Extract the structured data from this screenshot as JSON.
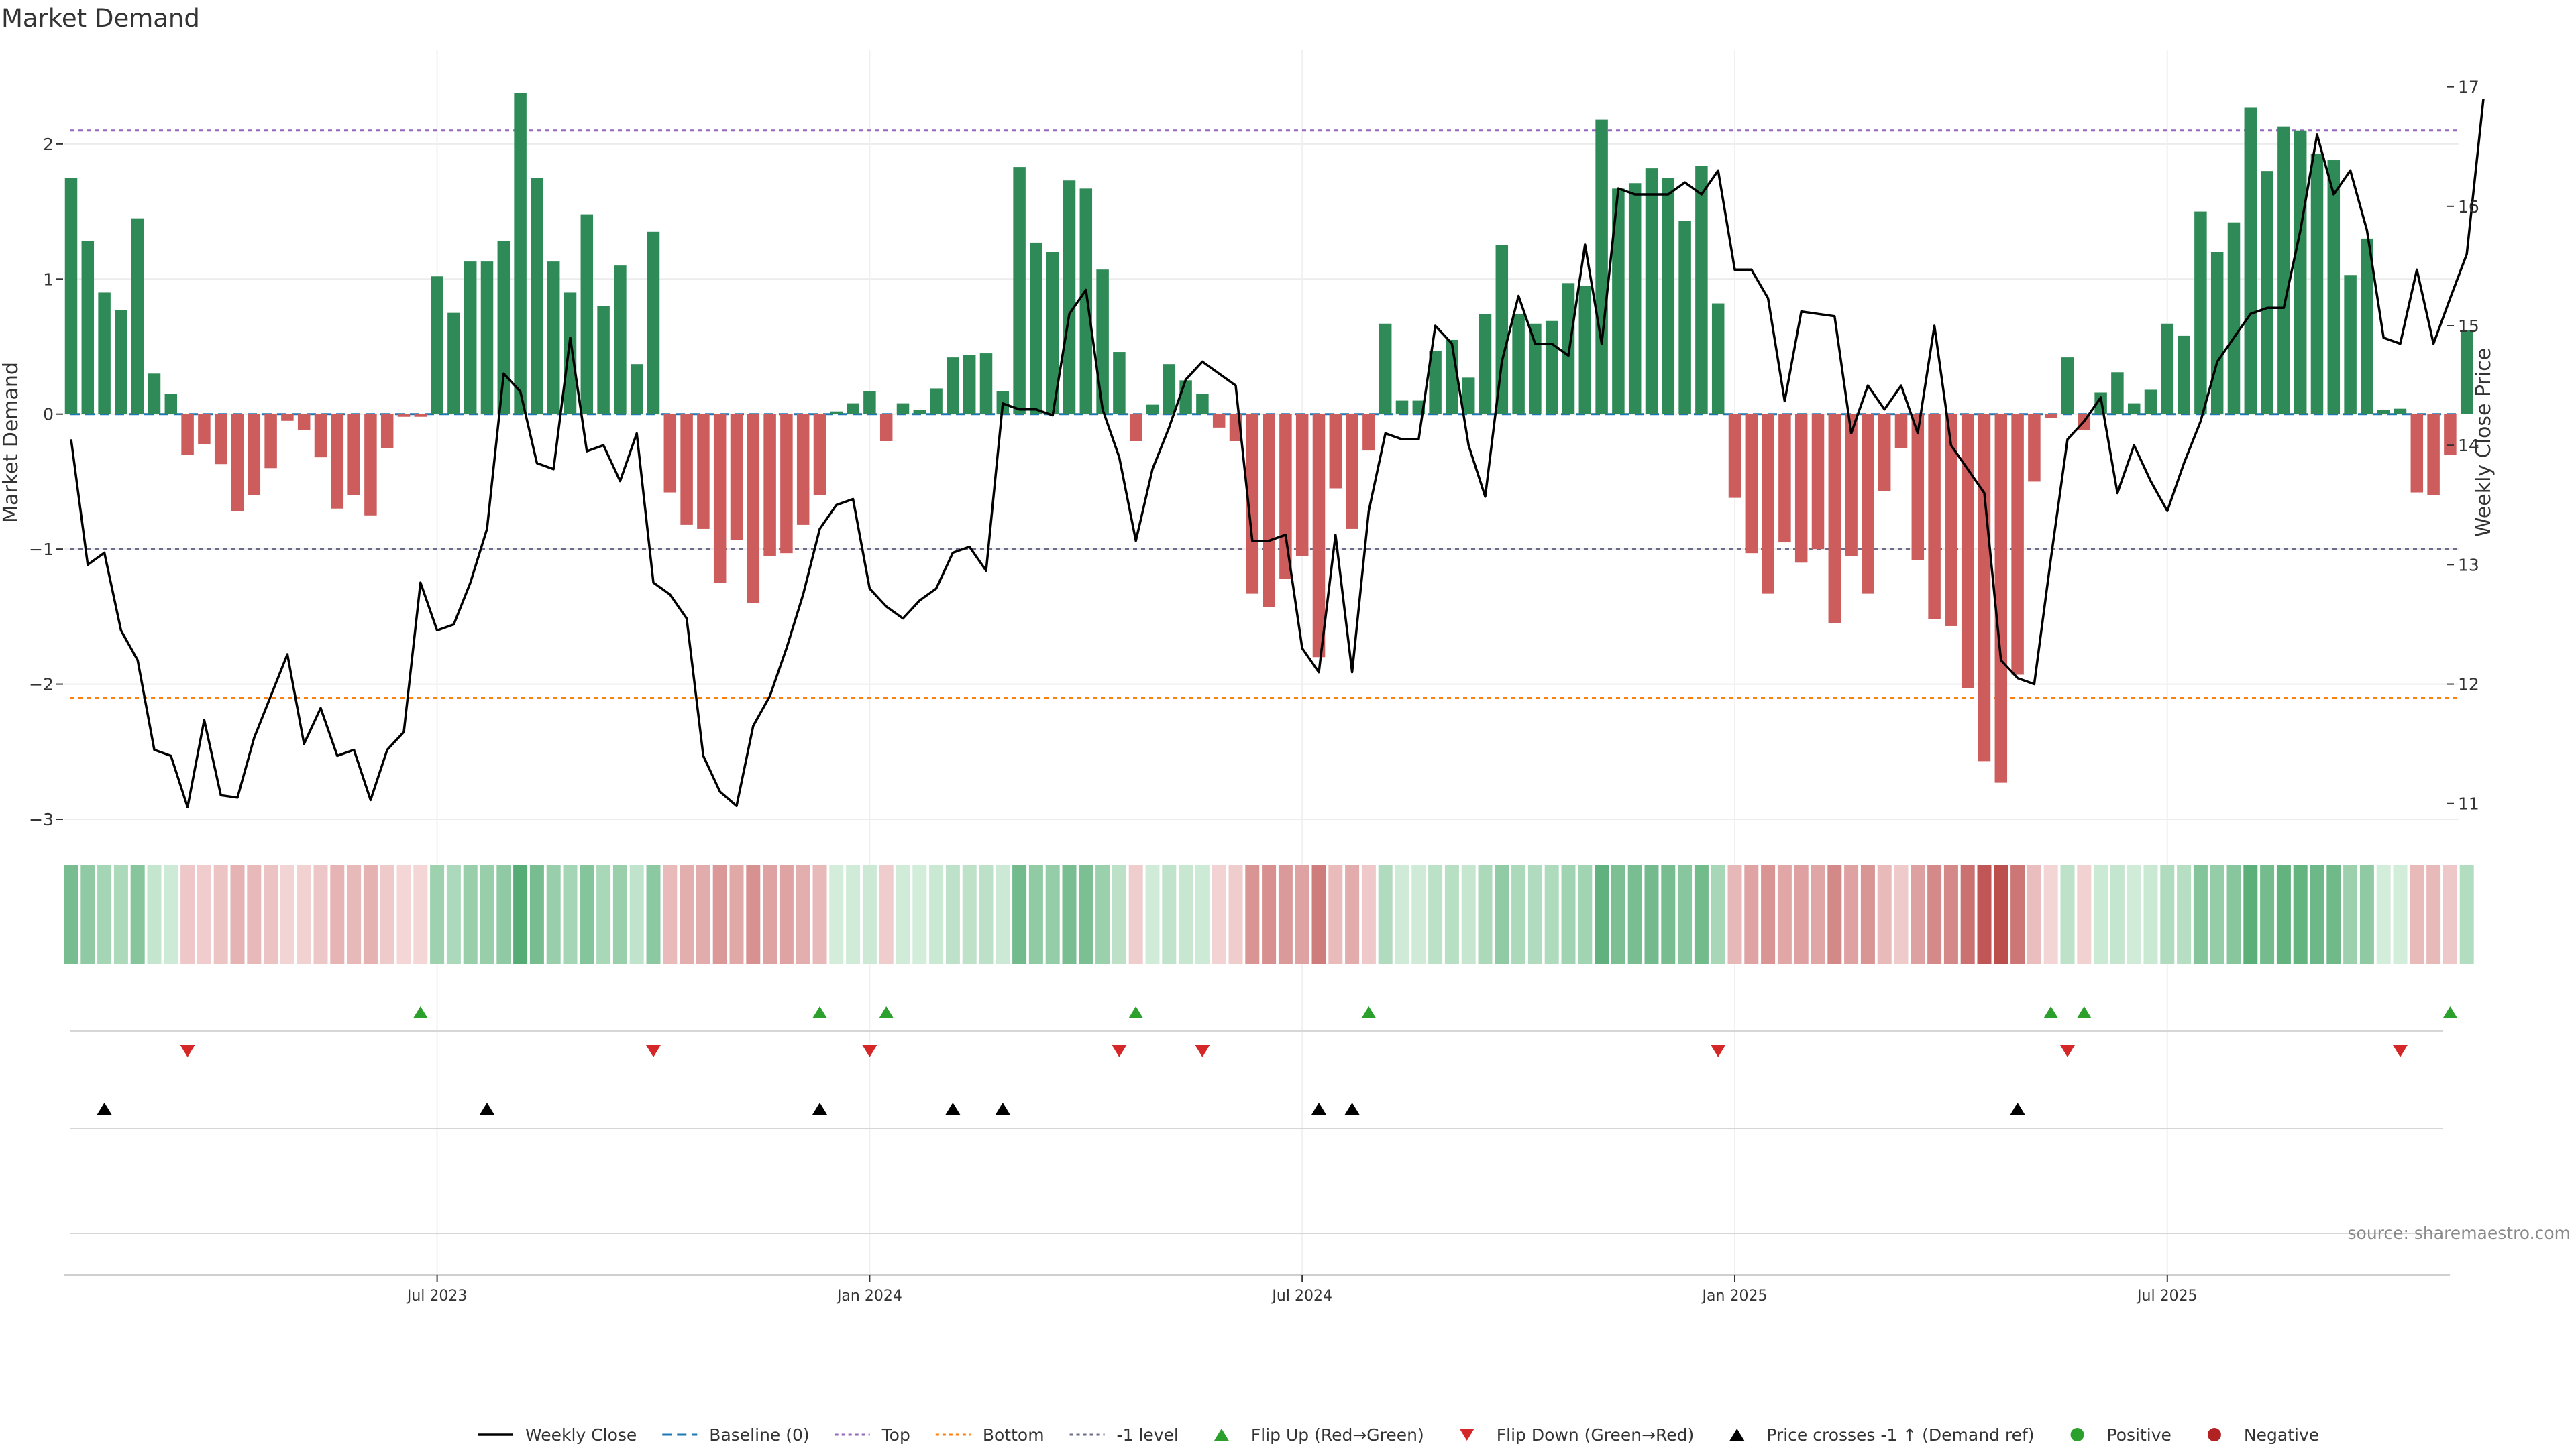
{
  "chart_data": {
    "type": "bar",
    "title": "Market Demand",
    "ylabel_left": "Market Demand",
    "ylabel_right": "Weekly Close Price",
    "ylim_left": [
      -3,
      2.6
    ],
    "ylim_right": [
      10.6,
      17.2
    ],
    "yticks_left": [
      {
        "v": 2,
        "label": "2"
      },
      {
        "v": 1,
        "label": "1"
      },
      {
        "v": 0,
        "label": "0"
      },
      {
        "v": -1,
        "label": "−1"
      },
      {
        "v": -2,
        "label": "−2"
      },
      {
        "v": -3,
        "label": "−3"
      }
    ],
    "yticks_right": [
      "11",
      "12",
      "13",
      "14",
      "15",
      "16",
      "17"
    ],
    "x_week_range": [
      0,
      143
    ],
    "xticks": [
      {
        "week": 22,
        "label": "Jul 2023"
      },
      {
        "week": 48,
        "label": "Jan 2024"
      },
      {
        "week": 74,
        "label": "Jul 2024"
      },
      {
        "week": 100,
        "label": "Jan 2025"
      },
      {
        "week": 126,
        "label": "Jul 2025"
      }
    ],
    "levels": {
      "top": 2.1,
      "bottom": -2.1,
      "minus_one": -1,
      "baseline": 0
    },
    "demand": [
      1.75,
      1.28,
      0.9,
      0.77,
      1.45,
      0.3,
      0.15,
      -0.3,
      -0.22,
      -0.37,
      -0.72,
      -0.6,
      -0.4,
      -0.05,
      -0.12,
      -0.32,
      -0.7,
      -0.6,
      -0.75,
      -0.25,
      -0.02,
      -0.02,
      1.02,
      0.75,
      1.13,
      1.13,
      1.28,
      2.38,
      1.75,
      1.13,
      0.9,
      1.48,
      0.8,
      1.1,
      0.37,
      1.35,
      -0.58,
      -0.82,
      -0.85,
      -1.25,
      -0.93,
      -1.4,
      -1.05,
      -1.03,
      -0.82,
      -0.6,
      0.02,
      0.08,
      0.17,
      -0.2,
      0.08,
      0.03,
      0.19,
      0.42,
      0.44,
      0.45,
      0.17,
      1.83,
      1.27,
      1.2,
      1.73,
      1.67,
      1.07,
      0.46,
      -0.2,
      0.07,
      0.37,
      0.25,
      0.15,
      -0.1,
      -0.2,
      -1.33,
      -1.43,
      -1.22,
      -1.05,
      -1.8,
      -0.55,
      -0.85,
      -0.27,
      0.67,
      0.1,
      0.1,
      0.47,
      0.55,
      0.27,
      0.74,
      1.25,
      0.74,
      0.67,
      0.69,
      0.97,
      0.95,
      2.18,
      1.67,
      1.71,
      1.82,
      1.75,
      1.43,
      1.84,
      0.82,
      -0.62,
      -1.03,
      -1.33,
      -0.95,
      -1.1,
      -1.0,
      -1.55,
      -1.05,
      -1.33,
      -0.57,
      -0.25,
      -1.08,
      -1.52,
      -1.57,
      -2.03,
      -2.57,
      -2.73,
      -1.93,
      -0.5,
      -0.03,
      0.42,
      -0.12,
      0.16,
      0.31,
      0.08,
      0.18,
      0.67,
      0.58,
      1.5,
      1.2,
      1.42,
      2.27,
      1.8,
      2.13,
      2.1,
      1.93,
      1.88,
      1.03,
      1.3,
      0.03,
      0.04,
      -0.58,
      -0.6,
      -0.3,
      0.62
    ],
    "weekly_close": [
      14.05,
      13.0,
      13.1,
      12.45,
      12.2,
      11.45,
      11.4,
      10.97,
      11.7,
      11.07,
      11.05,
      11.55,
      11.9,
      12.25,
      11.5,
      11.8,
      11.4,
      11.45,
      11.03,
      11.45,
      11.6,
      12.85,
      12.45,
      12.5,
      12.85,
      13.3,
      14.6,
      14.45,
      13.85,
      13.8,
      14.9,
      13.95,
      14.0,
      13.7,
      14.1,
      12.85,
      12.75,
      12.55,
      11.4,
      11.1,
      10.98,
      11.65,
      11.9,
      12.3,
      12.75,
      13.3,
      13.5,
      13.55,
      12.8,
      12.65,
      12.55,
      12.7,
      12.8,
      13.1,
      13.15,
      12.95,
      14.35,
      14.3,
      14.3,
      14.25,
      15.1,
      15.3,
      14.3,
      13.9,
      13.2,
      13.8,
      14.15,
      14.55,
      14.7,
      14.6,
      14.5,
      13.2,
      13.2,
      13.25,
      12.3,
      12.1,
      13.25,
      12.1,
      13.45,
      14.1,
      14.05,
      14.05,
      15.0,
      14.85,
      14.0,
      13.57,
      14.7,
      15.25,
      14.85,
      14.85,
      14.75,
      15.68,
      14.85,
      16.15,
      16.1,
      16.1,
      16.1,
      16.2,
      16.1,
      16.3,
      15.47,
      15.47,
      15.23,
      14.37,
      15.12,
      15.1,
      15.08,
      14.1,
      14.5,
      14.3,
      14.5,
      14.1,
      15.0,
      14.0,
      13.8,
      13.6,
      12.2,
      12.05,
      12.0,
      13.05,
      14.05,
      14.2,
      14.4,
      13.6,
      14.0,
      13.7,
      13.45,
      13.85,
      14.2,
      14.7,
      14.9,
      15.1,
      15.15,
      15.15,
      15.8,
      16.6,
      16.1,
      16.3,
      15.8,
      14.9,
      14.85,
      15.47,
      14.85,
      15.23,
      15.6,
      16.9
    ],
    "heat_strip_note": "color intensity per week follows demand sign and magnitude",
    "flip_up_weeks": [
      21,
      45,
      49,
      64,
      78,
      119,
      121,
      143
    ],
    "flip_down_weeks": [
      7,
      35,
      48,
      63,
      68,
      99,
      120,
      140
    ],
    "price_cross_weeks": [
      2,
      25,
      45,
      53,
      56,
      75,
      77,
      117
    ],
    "source_text": "source: sharemaestro.com",
    "legend": [
      {
        "key": "close",
        "label": "Weekly Close"
      },
      {
        "key": "baseline",
        "label": "Baseline (0)"
      },
      {
        "key": "top",
        "label": "Top"
      },
      {
        "key": "bottom",
        "label": "Bottom"
      },
      {
        "key": "minus1",
        "label": "-1 level"
      },
      {
        "key": "flipup",
        "label": "Flip Up (Red→Green)"
      },
      {
        "key": "flipdown",
        "label": "Flip Down (Green→Red)"
      },
      {
        "key": "cross",
        "label": "Price crosses -1 ↑ (Demand ref)"
      },
      {
        "key": "positive",
        "label": "Positive"
      },
      {
        "key": "negative",
        "label": "Negative"
      }
    ],
    "colors": {
      "positive_bar": "#2e8b57",
      "negative_bar": "#cd5c5c",
      "close_line": "#000000",
      "baseline": "#1f77b4",
      "top": "#9467bd",
      "bottom": "#ff7f0e",
      "minus_one": "#6b6b8a",
      "flip_up": "#2ca02c",
      "flip_down": "#d62728",
      "cross": "#000000",
      "positive_dot": "#2ca02c",
      "negative_dot": "#b22222"
    }
  }
}
